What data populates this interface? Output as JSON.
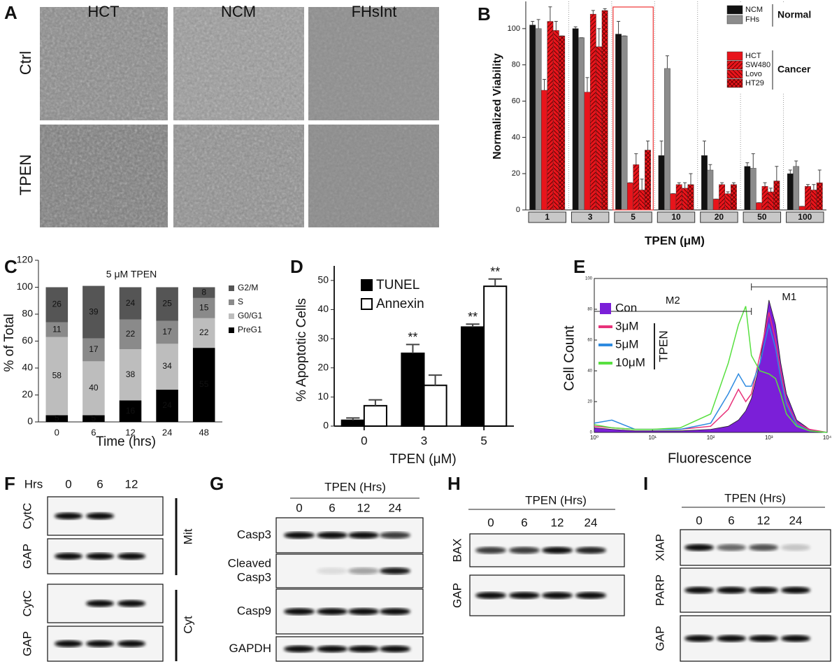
{
  "figure": {
    "panel_letters": [
      "A",
      "B",
      "C",
      "D",
      "E",
      "F",
      "G",
      "H",
      "I"
    ],
    "A": {
      "columns": [
        "HCT",
        "NCM",
        "FHsInt"
      ],
      "rows": [
        "Ctrl",
        "TPEN"
      ]
    },
    "F": {
      "header": "Hrs",
      "lanes": [
        "0",
        "6",
        "12"
      ],
      "rows": [
        "CytC",
        "GAP",
        "CytC",
        "GAP"
      ],
      "groups": [
        "Mit",
        "Cyt"
      ]
    },
    "G": {
      "header": "TPEN (Hrs)",
      "lanes": [
        "0",
        "6",
        "12",
        "24"
      ],
      "rows": [
        "Casp3",
        [
          "Cleaved",
          "Casp3"
        ],
        "Casp9",
        "GAPDH"
      ]
    },
    "H": {
      "header": "TPEN (Hrs)",
      "lanes": [
        "0",
        "6",
        "12",
        "24"
      ],
      "rows": [
        "BAX",
        "GAP"
      ]
    },
    "I": {
      "header": "TPEN (Hrs)",
      "lanes": [
        "0",
        "6",
        "12",
        "24"
      ],
      "rows": [
        "XIAP",
        "PARP",
        "GAP"
      ]
    }
  },
  "chart_data": [
    {
      "type": "bar",
      "stacked": false,
      "x_label": "TPEN (μM)",
      "y_label": "Normalized Viability",
      "categories": [
        "1",
        "3",
        "5",
        "10",
        "20",
        "50",
        "100"
      ],
      "series": [
        {
          "name": "NCM",
          "color": "#111111",
          "values": [
            102,
            100,
            97,
            30,
            30,
            24,
            20
          ],
          "errors": [
            2,
            1,
            7,
            8,
            8,
            2,
            2
          ]
        },
        {
          "name": "FHs",
          "color": "#8c8c8c",
          "values": [
            100,
            95,
            96,
            78,
            22,
            23,
            24
          ],
          "errors": [
            5,
            0,
            0,
            7,
            3,
            8,
            3
          ]
        },
        {
          "name": "HCT",
          "color": "#e8141b",
          "values": [
            66,
            65,
            15,
            9,
            6,
            4,
            2
          ],
          "errors": [
            6,
            8,
            0,
            0,
            0,
            0,
            0
          ]
        },
        {
          "name": "SW480",
          "color": "#e8141b",
          "pattern": "diagonal",
          "values": [
            104,
            108,
            25,
            14,
            14,
            13,
            13
          ],
          "errors": [
            8,
            2,
            6,
            1,
            1,
            2,
            1
          ]
        },
        {
          "name": "Lovo",
          "color": "#e8141b",
          "pattern": "back-diagonal",
          "values": [
            99,
            90,
            11,
            12,
            9,
            10,
            11
          ],
          "errors": [
            5,
            10,
            6,
            3,
            1,
            2,
            3
          ]
        },
        {
          "name": "HT29",
          "color": "#e8141b",
          "pattern": "cross",
          "values": [
            96,
            110,
            33,
            14,
            14,
            16,
            15
          ],
          "errors": [
            0,
            1,
            5,
            6,
            1,
            8,
            7
          ]
        }
      ],
      "legend_groups": [
        "Normal",
        "Cancer"
      ],
      "ylim": [
        0,
        115
      ],
      "yticks": [
        0,
        20,
        40,
        60,
        80,
        100
      ]
    },
    {
      "type": "bar",
      "stacked": true,
      "title": "5 μM TPEN",
      "x_label": "Time (hrs)",
      "y_label": "% of Total",
      "categories": [
        "0",
        "6",
        "12",
        "24",
        "48"
      ],
      "series": [
        {
          "name": "PreG1",
          "color": "#000000",
          "values": [
            5,
            5,
            16,
            24,
            55
          ]
        },
        {
          "name": "G0/G1",
          "color": "#bdbdbd",
          "values": [
            58,
            40,
            38,
            34,
            22
          ]
        },
        {
          "name": "S",
          "color": "#8a8a8a",
          "values": [
            11,
            17,
            22,
            17,
            15
          ]
        },
        {
          "name": "G2/M",
          "color": "#555555",
          "values": [
            26,
            39,
            24,
            25,
            8
          ]
        }
      ],
      "ylim": [
        0,
        120
      ],
      "yticks": [
        0,
        20,
        40,
        60,
        80,
        100,
        120
      ]
    },
    {
      "type": "bar",
      "stacked": false,
      "x_label": "TPEN (μM)",
      "y_label": "% Apoptotic Cells",
      "categories": [
        "0",
        "3",
        "5"
      ],
      "series": [
        {
          "name": "TUNEL",
          "color": "#000000",
          "values": [
            2,
            25,
            34
          ],
          "errors": [
            0.8,
            3,
            1
          ]
        },
        {
          "name": "Annexin",
          "color": "#ffffff",
          "values": [
            7,
            14,
            48
          ],
          "errors": [
            2,
            3.5,
            2.5
          ]
        }
      ],
      "annotations": [
        {
          "text": "**",
          "series": 0,
          "category": 1
        },
        {
          "text": "**",
          "series": 0,
          "category": 2
        },
        {
          "text": "**",
          "series": 1,
          "category": 2
        }
      ],
      "ylim": [
        0,
        55
      ],
      "yticks": [
        0,
        10,
        20,
        30,
        40,
        50
      ]
    },
    {
      "type": "line",
      "log_x": true,
      "x_label": "Fluorescence",
      "y_label": "Cell Count",
      "x": [
        1,
        2,
        5,
        10,
        30,
        100,
        200,
        300,
        400,
        500,
        700,
        1000,
        1300,
        1600,
        2000,
        3000,
        5000,
        10000
      ],
      "series": [
        {
          "name": "Con",
          "color": "#7b1fd8",
          "fill": true,
          "values": [
            3,
            2,
            1,
            1,
            1,
            2,
            4,
            8,
            14,
            22,
            45,
            86,
            70,
            45,
            25,
            8,
            2,
            0
          ]
        },
        {
          "name": "3μM",
          "color": "#e8327a",
          "values": [
            4,
            3,
            2,
            2,
            2,
            4,
            15,
            28,
            20,
            25,
            50,
            78,
            60,
            40,
            20,
            6,
            2,
            0
          ]
        },
        {
          "name": "5μM",
          "color": "#2f8be0",
          "values": [
            6,
            8,
            2,
            2,
            2,
            6,
            25,
            38,
            30,
            30,
            45,
            70,
            55,
            35,
            18,
            5,
            1,
            0
          ]
        },
        {
          "name": "10μM",
          "color": "#58e040",
          "values": [
            5,
            3,
            2,
            2,
            3,
            12,
            45,
            70,
            82,
            50,
            40,
            38,
            35,
            25,
            12,
            4,
            1,
            0
          ]
        }
      ],
      "legend_group": "TPEN",
      "markers": [
        {
          "label": "M2",
          "range": [
            1,
            500
          ]
        },
        {
          "label": "M1",
          "range": [
            500,
            10000
          ]
        }
      ],
      "xlim": [
        1,
        10000
      ],
      "xticks": [
        {
          "value": 1,
          "label": "10⁰"
        },
        {
          "value": 10,
          "label": "10¹"
        },
        {
          "value": 100,
          "label": "10²"
        },
        {
          "value": 1000,
          "label": "10³"
        },
        {
          "value": 10000,
          "label": "10⁴"
        }
      ],
      "ylim": [
        0,
        100
      ],
      "yticks": [
        0,
        20,
        40,
        60,
        80,
        100
      ]
    }
  ]
}
